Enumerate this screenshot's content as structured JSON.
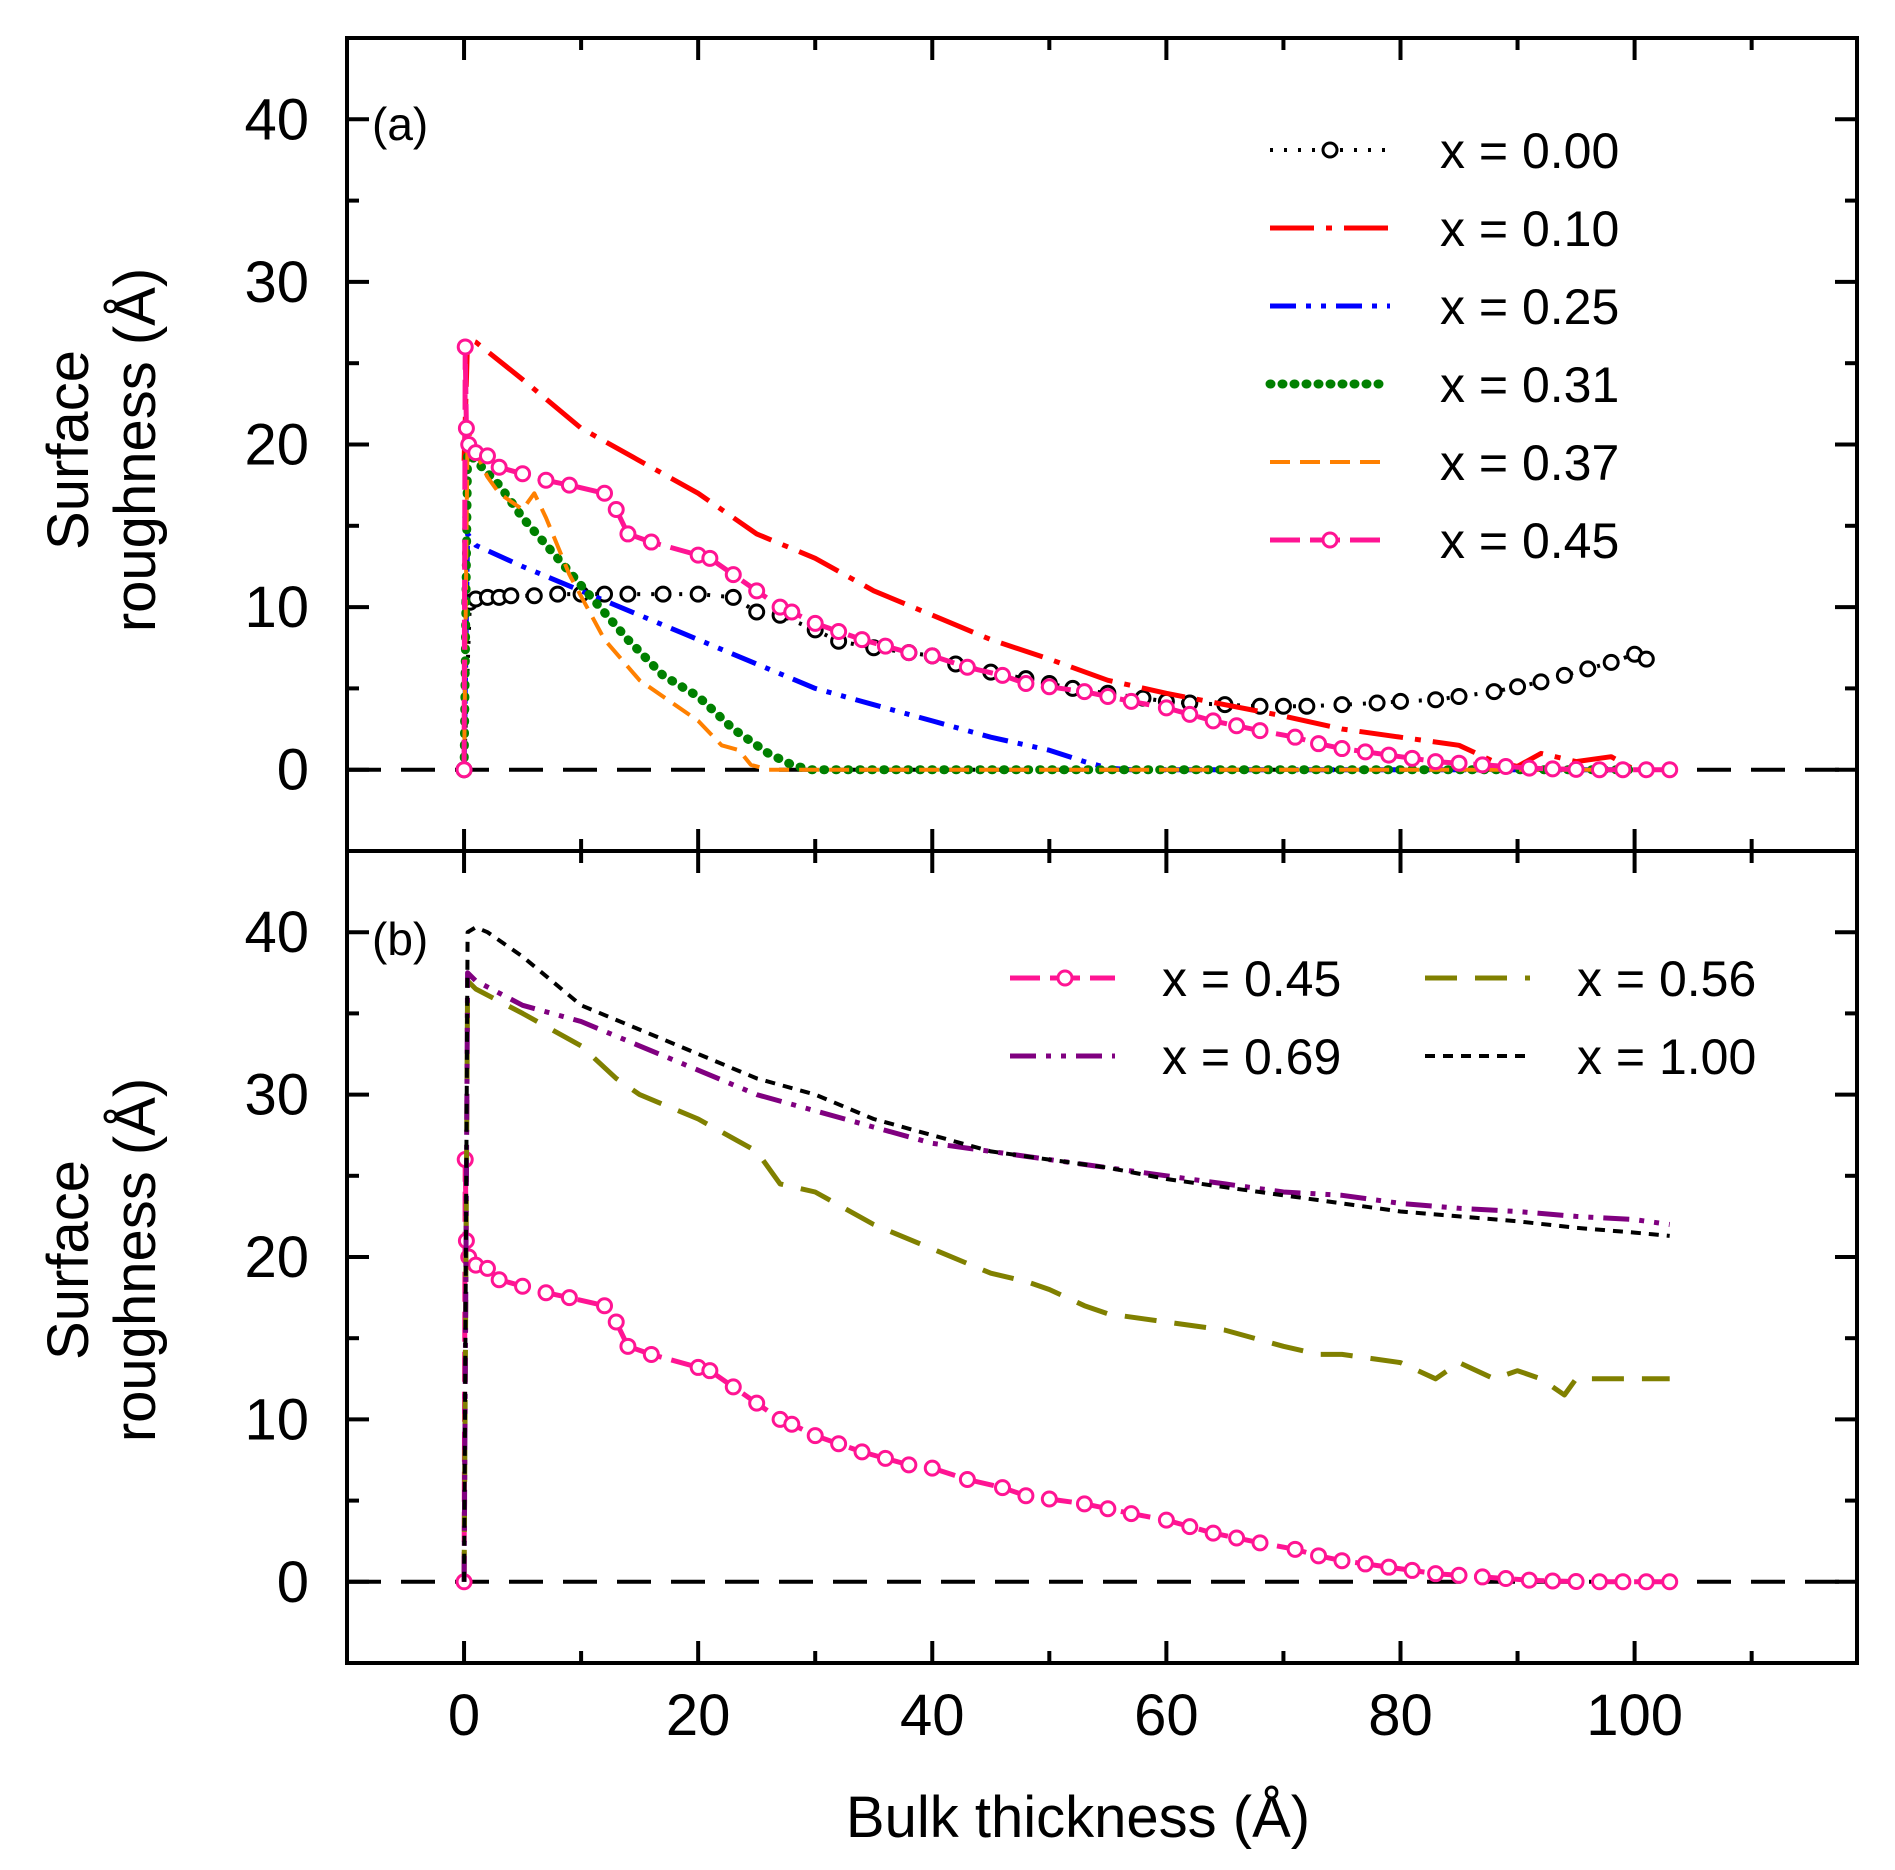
{
  "chart_data": {
    "type": "line",
    "xlabel": "Bulk thickness (Å)",
    "xlim": [
      -10,
      119
    ],
    "xticks": [
      0,
      20,
      40,
      60,
      80,
      100
    ],
    "panels": [
      {
        "id": "a",
        "label": "(a)",
        "ylabel_line1": "Surface",
        "ylabel_line2": "roughness (Å)",
        "ylim": [
          -5,
          45
        ],
        "yticks": [
          0,
          10,
          20,
          30,
          40
        ],
        "reference_line_y": 0,
        "legend_position": "top-right",
        "series": [
          {
            "name": "x = 0.00",
            "color": "#000000",
            "style": "dotted-circles",
            "x": [
              0,
              0.5,
              1,
              2,
              3,
              4,
              6,
              8,
              10,
              12,
              14,
              17,
              20,
              23,
              25,
              27,
              30,
              32,
              35,
              38,
              40,
              42,
              45,
              48,
              50,
              52,
              55,
              58,
              60,
              62,
              65,
              68,
              70,
              72,
              75,
              78,
              80,
              83,
              85,
              88,
              90,
              92,
              94,
              96,
              98,
              100,
              101
            ],
            "y": [
              0,
              10.3,
              10.5,
              10.6,
              10.6,
              10.7,
              10.7,
              10.8,
              10.8,
              10.8,
              10.8,
              10.8,
              10.8,
              10.6,
              9.7,
              9.5,
              8.6,
              7.9,
              7.5,
              7.2,
              7,
              6.5,
              6,
              5.6,
              5.3,
              5,
              4.7,
              4.4,
              4.2,
              4.1,
              4,
              3.9,
              3.9,
              3.9,
              4,
              4.1,
              4.2,
              4.3,
              4.5,
              4.8,
              5.1,
              5.4,
              5.8,
              6.2,
              6.6,
              7.1,
              6.8
            ]
          },
          {
            "name": "x = 0.10",
            "color": "#ff0000",
            "style": "dash-dot",
            "x": [
              0,
              0.3,
              1,
              5,
              10,
              15,
              20,
              25,
              30,
              35,
              40,
              45,
              50,
              55,
              60,
              65,
              70,
              75,
              80,
              85,
              88,
              90,
              92,
              95,
              98,
              100
            ],
            "y": [
              19,
              26.5,
              26.3,
              24,
              21,
              19,
              17,
              14.5,
              13,
              11,
              9.5,
              8,
              6.8,
              5.5,
              4.7,
              4,
              3.3,
              2.5,
              2,
              1.5,
              0.5,
              0.2,
              1,
              0.5,
              0.8,
              0
            ]
          },
          {
            "name": "x = 0.25",
            "color": "#0000ff",
            "style": "dash-dot-dot",
            "x": [
              0,
              0.3,
              1,
              5,
              10,
              15,
              20,
              25,
              30,
              35,
              40,
              45,
              50,
              53,
              55,
              57,
              60,
              80,
              100
            ],
            "y": [
              0,
              14.5,
              13.8,
              12.5,
              11,
              9.5,
              8,
              6.5,
              5,
              4,
              3,
              2,
              1.2,
              0.5,
              0.1,
              0,
              0,
              0,
              0
            ]
          },
          {
            "name": "x = 0.31",
            "color": "#008000",
            "style": "dotted-thick",
            "x": [
              0,
              0.3,
              1,
              3,
              5,
              8,
              11,
              14,
              17,
              20,
              23,
              26,
              28,
              29.5,
              31,
              40,
              60,
              80,
              100
            ],
            "y": [
              0,
              19.5,
              19,
              17.5,
              15.5,
              13,
              10.5,
              8,
              5.8,
              4.5,
              2.5,
              1,
              0.3,
              0,
              0,
              0,
              0,
              0,
              0
            ]
          },
          {
            "name": "x = 0.37",
            "color": "#ff8000",
            "style": "dashed",
            "x": [
              0,
              0.3,
              1,
              2,
              3,
              5,
              6,
              7,
              9,
              12,
              15,
              18,
              20,
              22,
              23.5,
              24.5,
              26,
              40,
              60,
              80,
              100
            ],
            "y": [
              0,
              21,
              19.5,
              18,
              17,
              16,
              17,
              15.5,
              12,
              8,
              5.5,
              4,
              3,
              1.5,
              1.2,
              0.3,
              0,
              0,
              0,
              0,
              0
            ]
          },
          {
            "name": "x = 0.45",
            "color": "#ff1493",
            "style": "dashed-circles",
            "x": [
              0,
              0.1,
              0.2,
              0.4,
              1,
              2,
              3,
              5,
              7,
              9,
              12,
              13,
              14,
              16,
              20,
              21,
              23,
              25,
              27,
              28,
              30,
              32,
              34,
              36,
              38,
              40,
              43,
              46,
              48,
              50,
              53,
              55,
              57,
              60,
              62,
              64,
              66,
              68,
              71,
              73,
              75,
              77,
              79,
              81,
              83,
              85,
              87,
              89,
              91,
              93,
              95,
              97,
              99,
              101,
              103
            ],
            "y": [
              0,
              26,
              21,
              20,
              19.5,
              19.3,
              18.6,
              18.2,
              17.8,
              17.5,
              17,
              16,
              14.5,
              14,
              13.2,
              13,
              12,
              11,
              10,
              9.7,
              9,
              8.5,
              8,
              7.6,
              7.2,
              7,
              6.3,
              5.8,
              5.3,
              5.1,
              4.8,
              4.5,
              4.2,
              3.8,
              3.4,
              3,
              2.7,
              2.4,
              2,
              1.6,
              1.3,
              1.1,
              0.9,
              0.7,
              0.5,
              0.4,
              0.3,
              0.2,
              0.1,
              0.05,
              0.02,
              0,
              0,
              0,
              0
            ]
          }
        ]
      },
      {
        "id": "b",
        "label": "(b)",
        "ylabel_line1": "Surface",
        "ylabel_line2": "roughness (Å)",
        "ylim": [
          -5,
          45
        ],
        "yticks": [
          0,
          10,
          20,
          30,
          40
        ],
        "reference_line_y": 0,
        "legend_position": "top-right",
        "series": [
          {
            "name": "x = 0.45",
            "color": "#ff1493",
            "style": "dashed-circles",
            "x": [
              0,
              0.1,
              0.2,
              0.4,
              1,
              2,
              3,
              5,
              7,
              9,
              12,
              13,
              14,
              16,
              20,
              21,
              23,
              25,
              27,
              28,
              30,
              32,
              34,
              36,
              38,
              40,
              43,
              46,
              48,
              50,
              53,
              55,
              57,
              60,
              62,
              64,
              66,
              68,
              71,
              73,
              75,
              77,
              79,
              81,
              83,
              85,
              87,
              89,
              91,
              93,
              95,
              97,
              99,
              101,
              103
            ],
            "y": [
              0,
              26,
              21,
              20,
              19.5,
              19.3,
              18.6,
              18.2,
              17.8,
              17.5,
              17,
              16,
              14.5,
              14,
              13.2,
              13,
              12,
              11,
              10,
              9.7,
              9,
              8.5,
              8,
              7.6,
              7.2,
              7,
              6.3,
              5.8,
              5.3,
              5.1,
              4.8,
              4.5,
              4.2,
              3.8,
              3.4,
              3,
              2.7,
              2.4,
              2,
              1.6,
              1.3,
              1.1,
              0.9,
              0.7,
              0.5,
              0.4,
              0.3,
              0.2,
              0.1,
              0.05,
              0.02,
              0,
              0,
              0,
              0
            ]
          },
          {
            "name": "x = 0.56",
            "color": "#808000",
            "style": "long-dash",
            "x": [
              0,
              0.3,
              1,
              5,
              10,
              13,
              15,
              20,
              25,
              27,
              30,
              35,
              40,
              45,
              48,
              50,
              53,
              55,
              60,
              65,
              70,
              73,
              75,
              80,
              83,
              85,
              88,
              90,
              92,
              94,
              95,
              100,
              103
            ],
            "y": [
              0,
              37,
              36.5,
              35,
              33,
              31,
              30,
              28.5,
              26.5,
              24.5,
              24,
              22,
              20.5,
              19,
              18.5,
              18,
              17,
              16.5,
              16,
              15.5,
              14.5,
              14,
              14,
              13.5,
              12.5,
              13.5,
              12.5,
              13,
              12.5,
              11.5,
              12.5,
              12.5,
              12.5
            ]
          },
          {
            "name": "x = 0.69",
            "color": "#800080",
            "style": "dash-dot-dot",
            "x": [
              0,
              0.3,
              1,
              5,
              10,
              15,
              20,
              25,
              30,
              35,
              40,
              45,
              50,
              55,
              60,
              65,
              70,
              75,
              80,
              85,
              90,
              95,
              100,
              103
            ],
            "y": [
              0,
              37.5,
              37,
              35.5,
              34.5,
              33,
              31.5,
              30,
              29,
              28,
              27,
              26.5,
              26,
              25.5,
              25,
              24.5,
              24,
              23.8,
              23.3,
              23,
              22.8,
              22.5,
              22.3,
              22
            ]
          },
          {
            "name": "x = 1.00",
            "color": "#000000",
            "style": "short-dash",
            "x": [
              0,
              0.3,
              1,
              2,
              5,
              10,
              15,
              20,
              25,
              30,
              35,
              40,
              45,
              50,
              55,
              60,
              65,
              70,
              75,
              80,
              85,
              90,
              95,
              100,
              103
            ],
            "y": [
              0,
              40,
              40.3,
              40,
              38.5,
              35.5,
              34,
              32.5,
              31,
              30,
              28.5,
              27.5,
              26.5,
              26,
              25.5,
              24.8,
              24.3,
              23.8,
              23.3,
              22.8,
              22.5,
              22.2,
              21.8,
              21.5,
              21.3
            ]
          }
        ]
      }
    ]
  }
}
